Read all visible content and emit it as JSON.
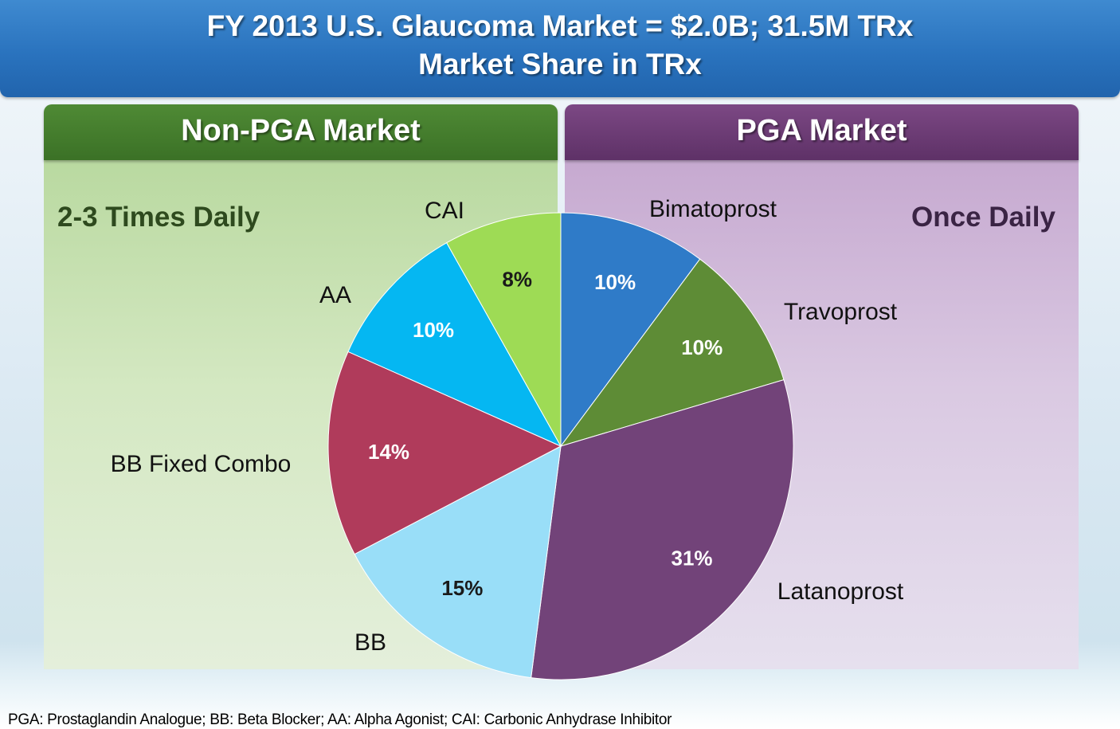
{
  "title": {
    "line1": "FY 2013 U.S. Glaucoma Market = $2.0B; 31.5M TRx",
    "line2": "Market Share in TRx"
  },
  "sections": {
    "left": {
      "header": "Non-PGA Market",
      "frequency": "2-3 Times Daily"
    },
    "right": {
      "header": "PGA Market",
      "frequency": "Once Daily"
    }
  },
  "footnote": "PGA: Prostaglandin Analogue; BB: Beta Blocker; AA: Alpha Agonist; CAI: Carbonic Anhydrase Inhibitor",
  "chart_data": {
    "type": "pie",
    "title": "Market Share in TRx",
    "slices": [
      {
        "label": "Bimatoprost",
        "value": 10,
        "value_label": "10%",
        "color": "#2f7bc8"
      },
      {
        "label": "Travoprost",
        "value": 10,
        "value_label": "10%",
        "color": "#5e8c36"
      },
      {
        "label": "Latanoprost",
        "value": 31,
        "value_label": "31%",
        "color": "#724379"
      },
      {
        "label": "BB",
        "value": 15,
        "value_label": "15%",
        "color": "#99def8"
      },
      {
        "label": "BB Fixed Combo",
        "value": 14,
        "value_label": "14%",
        "color": "#b03b5b"
      },
      {
        "label": "AA",
        "value": 10,
        "value_label": "10%",
        "color": "#05b7f2"
      },
      {
        "label": "CAI",
        "value": 8,
        "value_label": "8%",
        "color": "#9edb55"
      }
    ],
    "start": "12 o'clock, clockwise",
    "legend": "none; category labels placed outside slices"
  }
}
